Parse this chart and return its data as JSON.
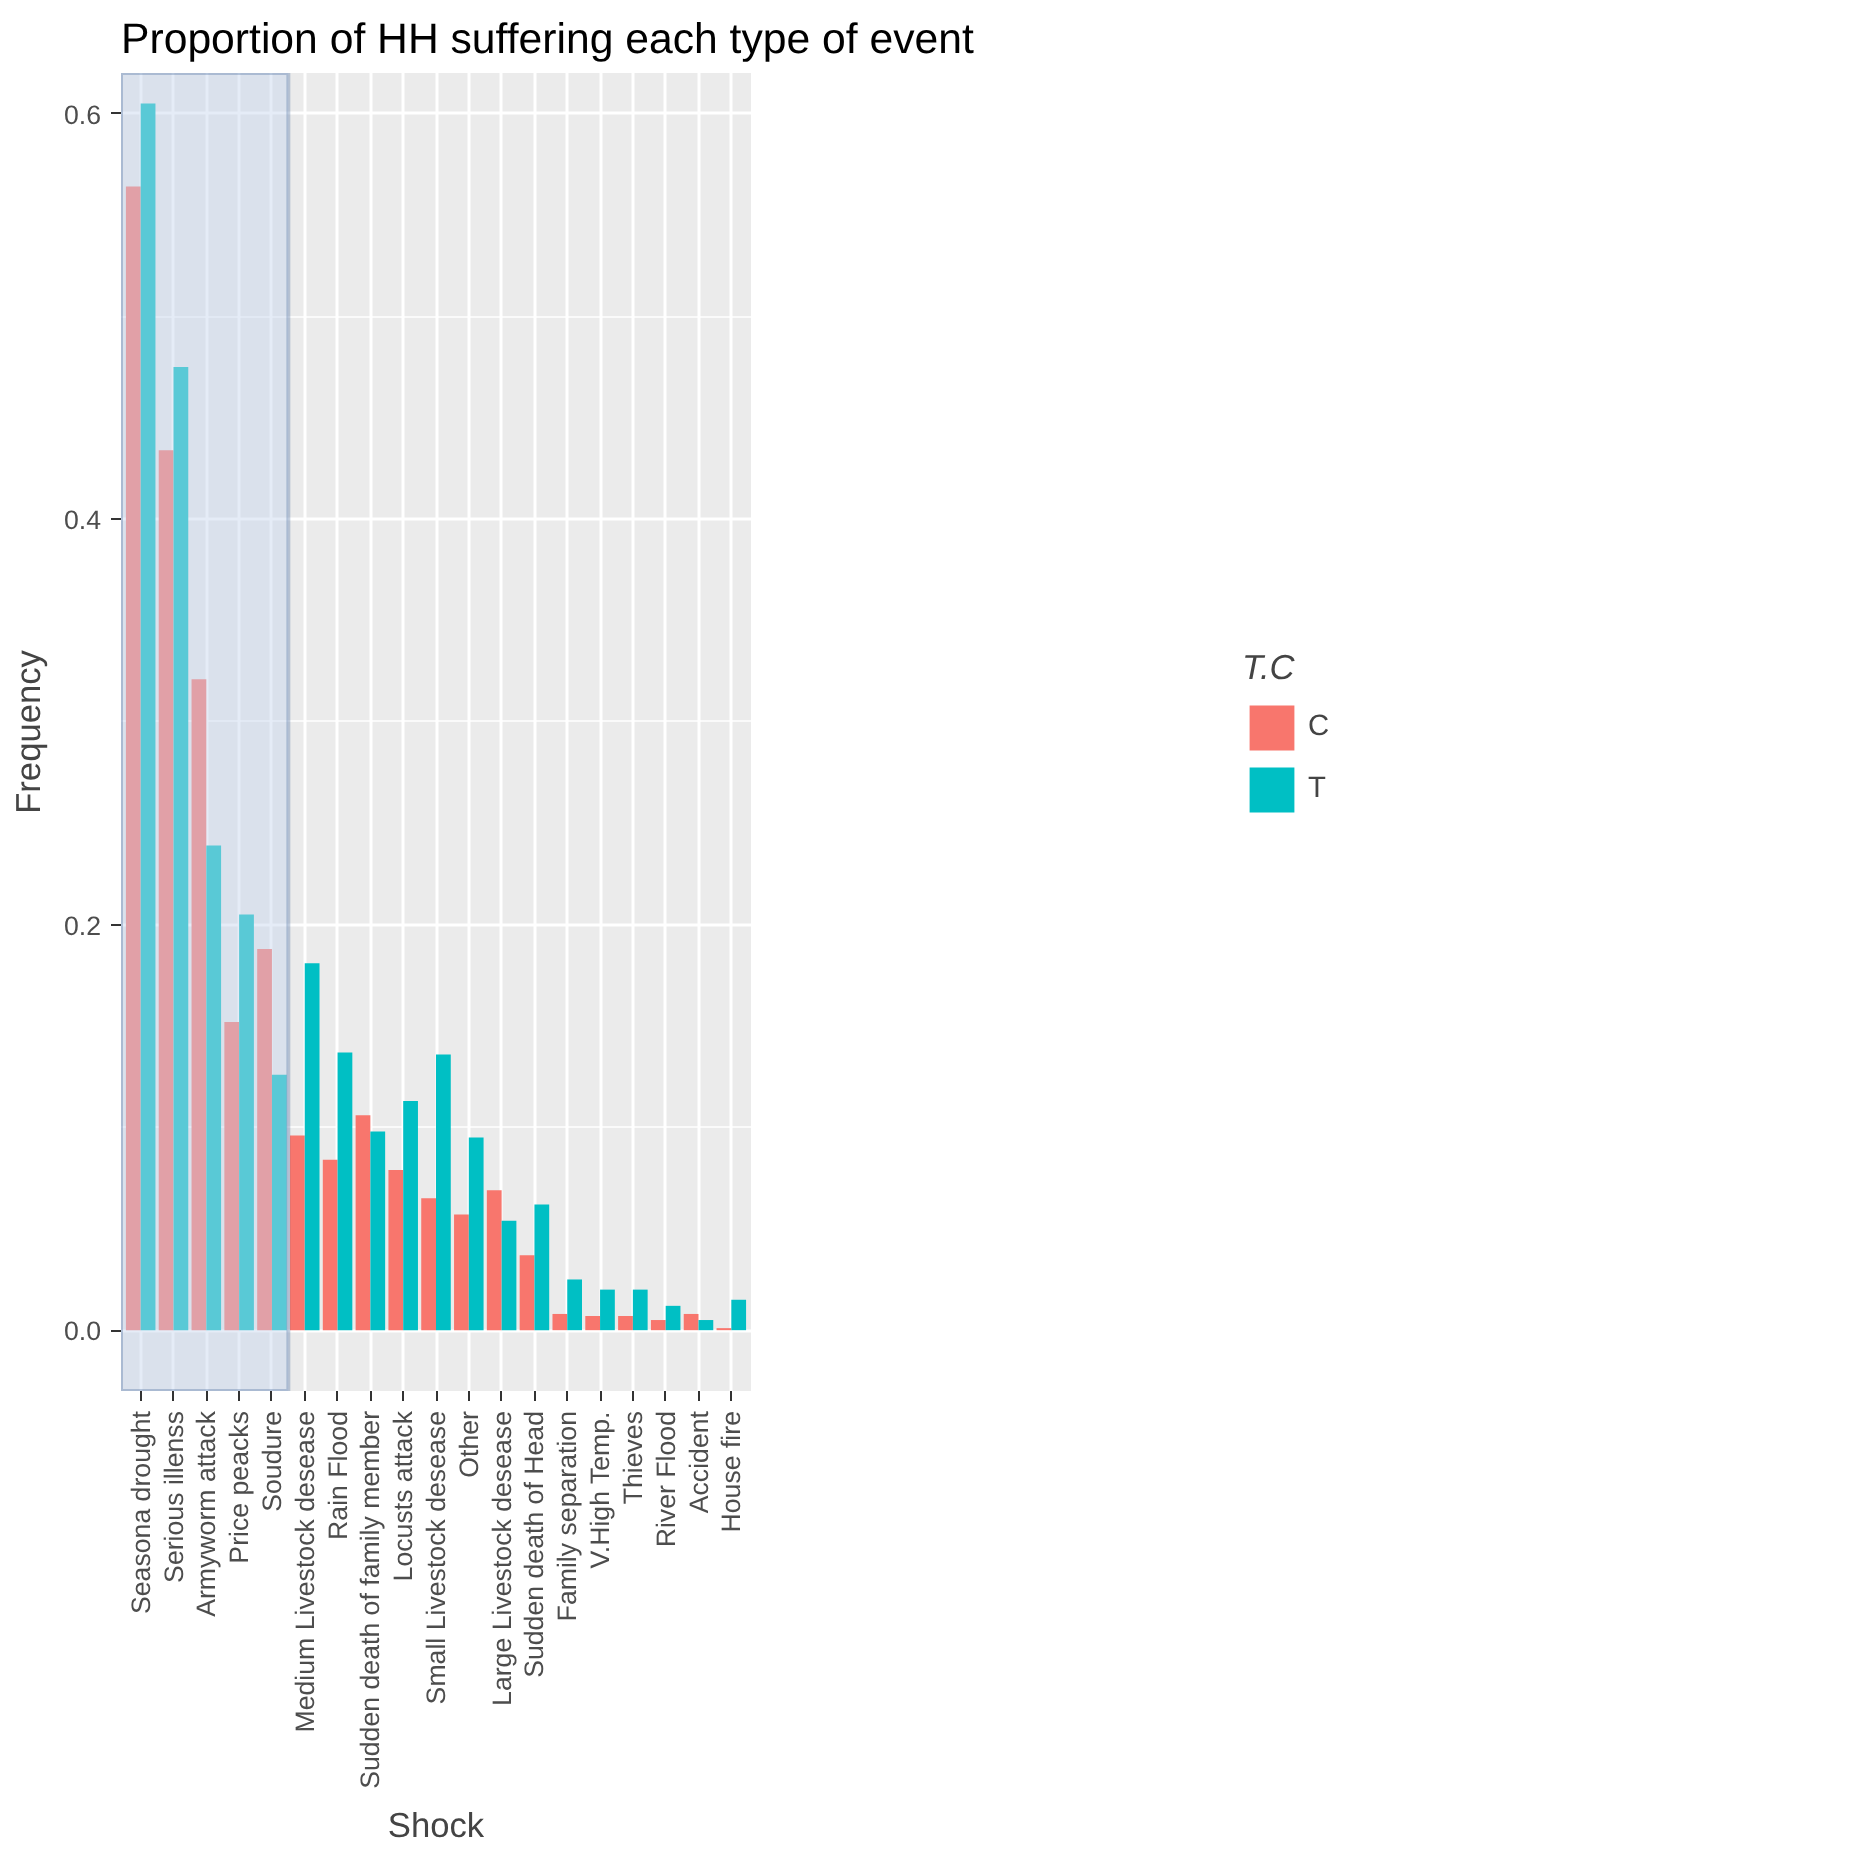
{
  "chart_data": {
    "type": "bar",
    "title": "Proportion of HH suffering each type of event",
    "xlabel": "Shock",
    "ylabel": "Frequency",
    "legend_title": "T.C",
    "categories": [
      "Seasona drought",
      "Serious illenss",
      "Armyworm attack",
      "Price peacks",
      "Soudure",
      "Medium Livestock desease",
      "Rain Flood",
      "Sudden death of family member",
      "Locusts attack",
      "Small Livestock desease",
      "Other",
      "Large Livestock desease",
      "Sudden death of Head",
      "Family separation",
      "V.High Temp.",
      "Thieves",
      "River Flood",
      "Accident",
      "House fire"
    ],
    "series": [
      {
        "name": "C",
        "color": "#f8766d",
        "values": [
          0.564,
          0.434,
          0.321,
          0.152,
          0.188,
          0.096,
          0.084,
          0.106,
          0.079,
          0.065,
          0.057,
          0.069,
          0.037,
          0.008,
          0.007,
          0.007,
          0.005,
          0.008,
          0.001
        ]
      },
      {
        "name": "T",
        "color": "#00bfc4",
        "values": [
          0.605,
          0.475,
          0.239,
          0.205,
          0.126,
          0.181,
          0.137,
          0.098,
          0.113,
          0.136,
          0.095,
          0.054,
          0.062,
          0.025,
          0.02,
          0.02,
          0.012,
          0.005,
          0.015
        ]
      }
    ],
    "ylim": [
      -0.03,
      0.62
    ],
    "yticks": [
      {
        "value": 0,
        "label": "0.0"
      },
      {
        "value": 0.2,
        "label": "0.2"
      },
      {
        "value": 0.4,
        "label": "0.4"
      },
      {
        "value": 0.6,
        "label": "0.6"
      }
    ],
    "grid": true,
    "legend": "right",
    "bands": [
      {
        "axis": "x",
        "from": "Seasona drought",
        "to": "Soudure",
        "color": "#c5d5ee"
      }
    ]
  }
}
